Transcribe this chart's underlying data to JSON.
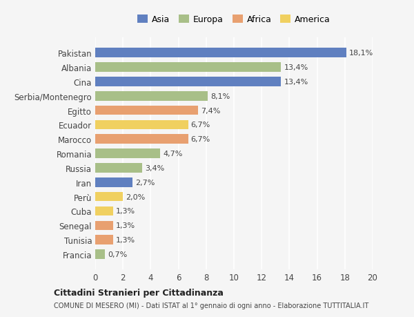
{
  "categories": [
    "Pakistan",
    "Albania",
    "Cina",
    "Serbia/Montenegro",
    "Egitto",
    "Ecuador",
    "Marocco",
    "Romania",
    "Russia",
    "Iran",
    "Perù",
    "Cuba",
    "Senegal",
    "Tunisia",
    "Francia"
  ],
  "values": [
    18.1,
    13.4,
    13.4,
    8.1,
    7.4,
    6.7,
    6.7,
    4.7,
    3.4,
    2.7,
    2.0,
    1.3,
    1.3,
    1.3,
    0.7
  ],
  "labels": [
    "18,1%",
    "13,4%",
    "13,4%",
    "8,1%",
    "7,4%",
    "6,7%",
    "6,7%",
    "4,7%",
    "3,4%",
    "2,7%",
    "2,0%",
    "1,3%",
    "1,3%",
    "1,3%",
    "0,7%"
  ],
  "continents": [
    "Asia",
    "Europa",
    "Asia",
    "Europa",
    "Africa",
    "America",
    "Africa",
    "Europa",
    "Europa",
    "Asia",
    "America",
    "America",
    "Africa",
    "Africa",
    "Europa"
  ],
  "colors": {
    "Asia": "#6080c0",
    "Europa": "#a8bf88",
    "Africa": "#e8a070",
    "America": "#f0d060"
  },
  "legend_order": [
    "Asia",
    "Europa",
    "Africa",
    "America"
  ],
  "xlim": [
    0,
    20
  ],
  "xticks": [
    0,
    2,
    4,
    6,
    8,
    10,
    12,
    14,
    16,
    18,
    20
  ],
  "title_bold": "Cittadini Stranieri per Cittadinanza",
  "subtitle": "COMUNE DI MESERO (MI) - Dati ISTAT al 1° gennaio di ogni anno - Elaborazione TUTTITALIA.IT",
  "background_color": "#f5f5f5",
  "bar_height": 0.65
}
